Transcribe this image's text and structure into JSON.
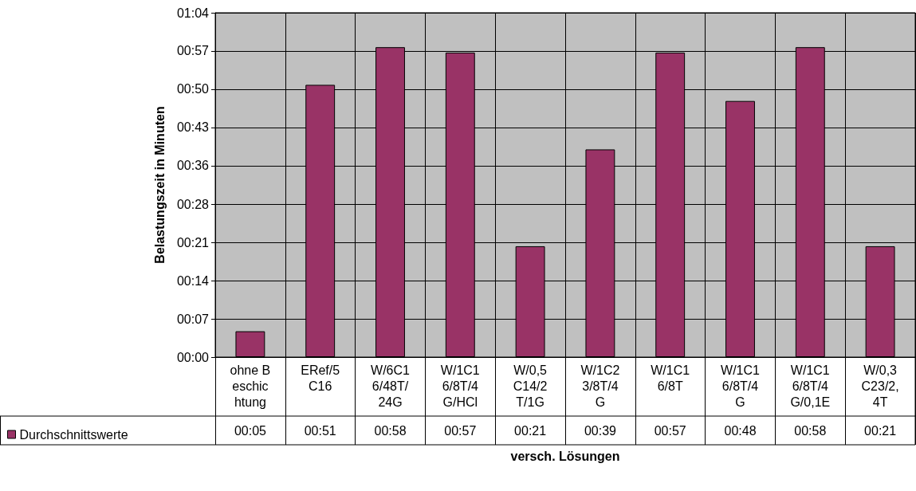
{
  "chart_data": {
    "type": "bar",
    "xlabel": "versch. Lösungen",
    "ylabel": "Belastungszeit in Minuten",
    "categories": [
      "ohne Beschichtung",
      "ERef/5C16",
      "W/6C16/48T/24G",
      "W/1C16/8T/4G/HCl",
      "W/0,5C14/2T/1G",
      "W/1C23/8T/4G",
      "W/1C16/8T",
      "W/1C16/8T/4G",
      "W/1C16/8T/4G/0,1E",
      "W/0,3C23/2,4T"
    ],
    "series": [
      {
        "name": "Durchschnittswerte",
        "color": "#993366",
        "values": [
          4.8,
          50.6,
          57.6,
          56.6,
          20.6,
          38.6,
          56.6,
          47.6,
          57.6,
          20.6
        ],
        "value_labels": [
          "00:05",
          "00:51",
          "00:58",
          "00:57",
          "00:21",
          "00:39",
          "00:57",
          "00:48",
          "00:58",
          "00:21"
        ]
      }
    ],
    "ylim": [
      0,
      64
    ],
    "yticks": [
      {
        "value": 0,
        "label": "00:00"
      },
      {
        "value": 7.11,
        "label": "00:07"
      },
      {
        "value": 14.22,
        "label": "00:14"
      },
      {
        "value": 21.33,
        "label": "00:21"
      },
      {
        "value": 28.44,
        "label": "00:28"
      },
      {
        "value": 35.56,
        "label": "00:36"
      },
      {
        "value": 42.67,
        "label": "00:43"
      },
      {
        "value": 49.78,
        "label": "00:50"
      },
      {
        "value": 56.89,
        "label": "00:57"
      },
      {
        "value": 64,
        "label": "01:04"
      }
    ],
    "grid": true,
    "legend": "bottom left"
  }
}
